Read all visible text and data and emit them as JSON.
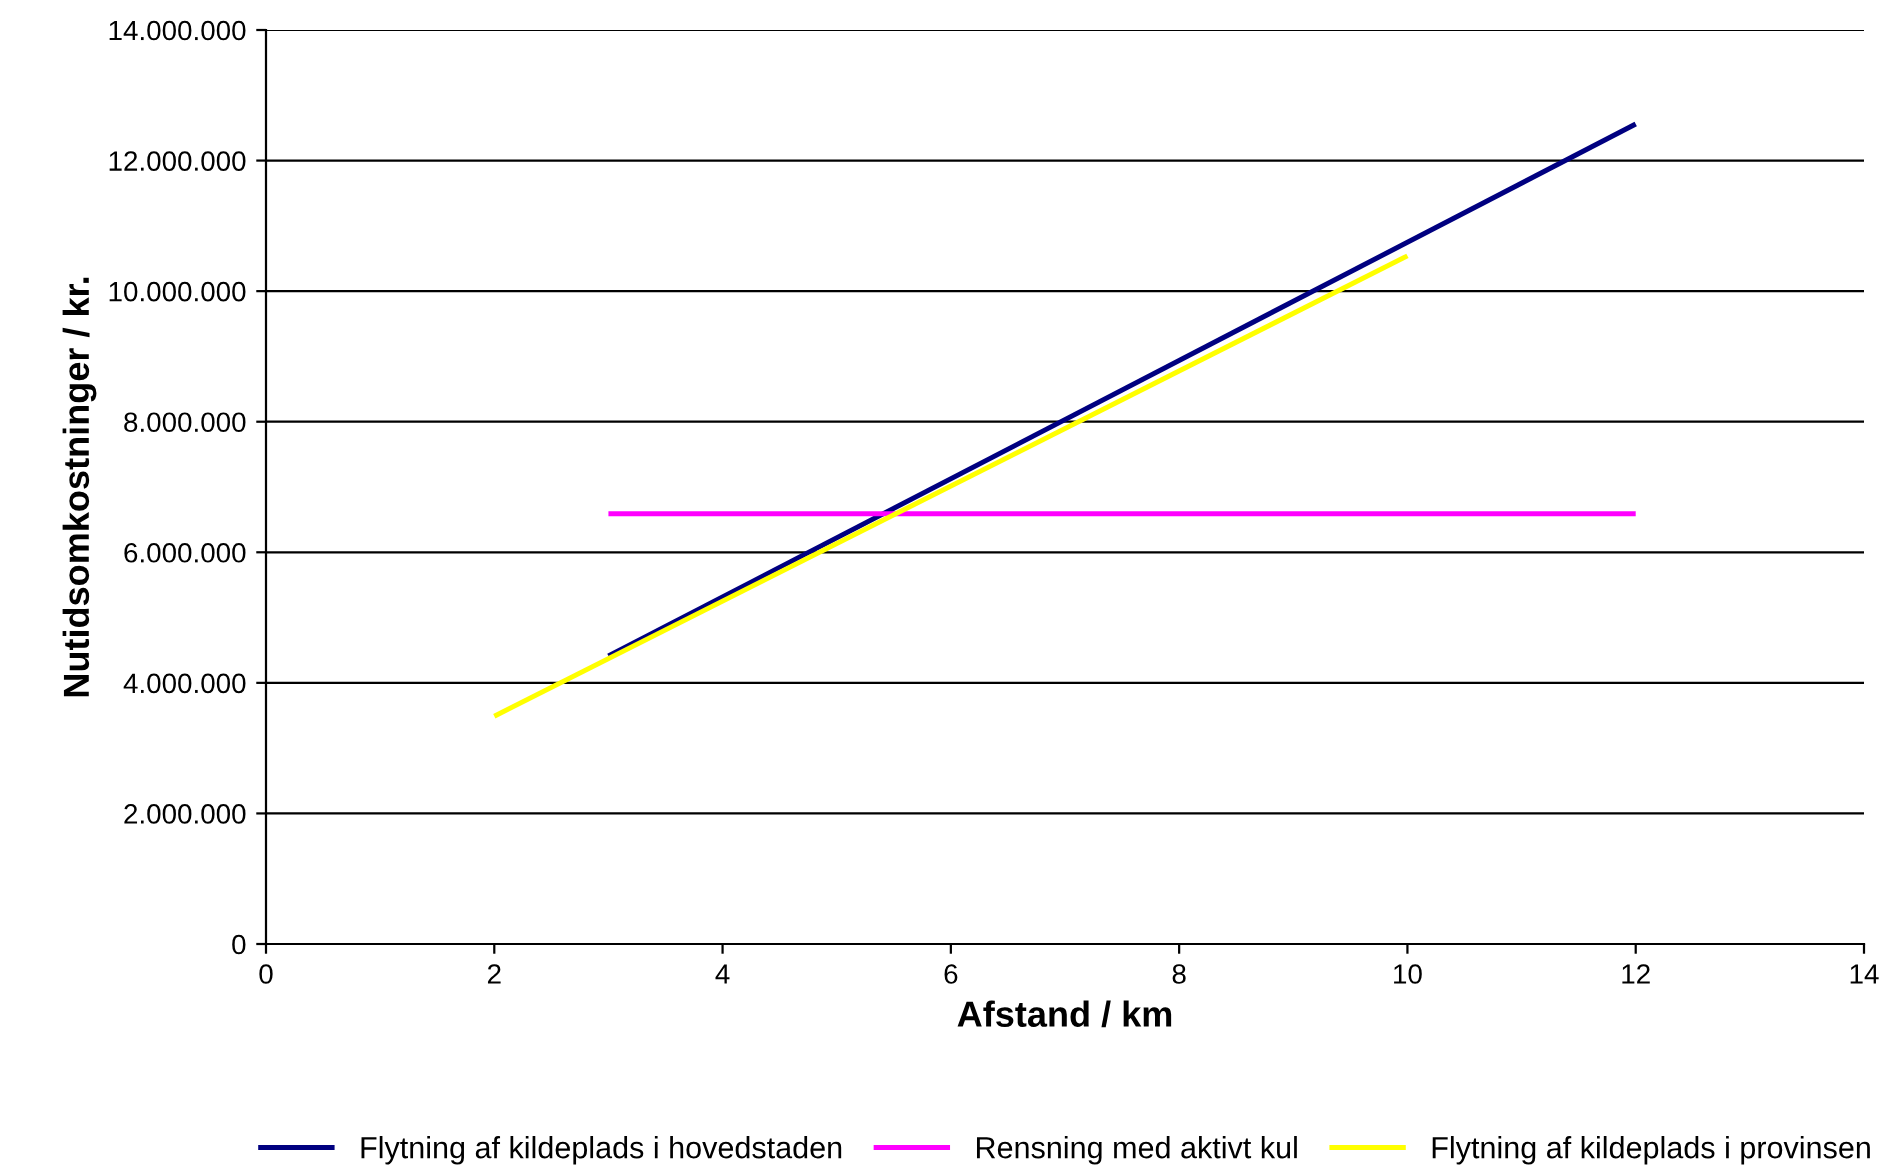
{
  "chart_data": {
    "type": "line",
    "xlabel": "Afstand / km",
    "ylabel": "Nutidsomkostninger / kr.",
    "series": [
      {
        "name": "Flytning af kildeplads i hovedstaden",
        "color": "#000080",
        "x": [
          3,
          12
        ],
        "values": [
          4410000,
          12560000
        ]
      },
      {
        "name": "Rensning med aktivt kul",
        "color": "#ff00ff",
        "x": [
          3,
          12
        ],
        "values": [
          6590000,
          6590000
        ]
      },
      {
        "name": "Flytning af kildeplads i provinsen",
        "color": "#ffff00",
        "x": [
          2,
          10
        ],
        "values": [
          3490000,
          10540000
        ]
      }
    ],
    "xlim": [
      0,
      14
    ],
    "xticks": [
      0,
      2,
      4,
      6,
      8,
      10,
      12,
      14
    ],
    "ylim": [
      0,
      14000000
    ],
    "yticks": [
      {
        "value": 0,
        "label": "0"
      },
      {
        "value": 2000000,
        "label": "2.000.000"
      },
      {
        "value": 4000000,
        "label": "4.000.000"
      },
      {
        "value": 6000000,
        "label": "6.000.000"
      },
      {
        "value": 8000000,
        "label": "8.000.000"
      },
      {
        "value": 10000000,
        "label": "10.000.000"
      },
      {
        "value": 12000000,
        "label": "12.000.000"
      },
      {
        "value": 14000000,
        "label": "14.000.000"
      }
    ],
    "grid": "y",
    "legend": "bottom",
    "marker": "none",
    "line_style": "solid"
  }
}
